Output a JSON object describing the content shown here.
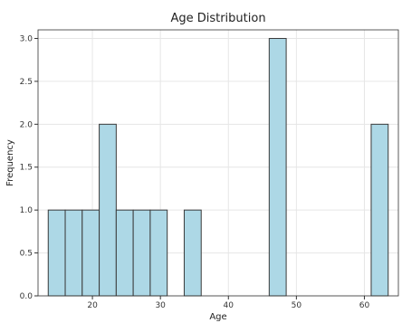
{
  "chart_data": {
    "type": "bar",
    "title": "Age Distribution",
    "xlabel": "Age",
    "ylabel": "Frequency",
    "xlim": [
      12,
      65
    ],
    "ylim": [
      0,
      3.1
    ],
    "xticks": [
      20,
      30,
      40,
      50,
      60
    ],
    "yticks": [
      0.0,
      0.5,
      1.0,
      1.5,
      2.0,
      2.5,
      3.0
    ],
    "grid": true,
    "bars": [
      {
        "x0": 13.5,
        "x1": 16.0,
        "value": 1
      },
      {
        "x0": 16.0,
        "x1": 18.5,
        "value": 1
      },
      {
        "x0": 18.5,
        "x1": 21.0,
        "value": 1
      },
      {
        "x0": 21.0,
        "x1": 23.5,
        "value": 2
      },
      {
        "x0": 23.5,
        "x1": 26.0,
        "value": 1
      },
      {
        "x0": 26.0,
        "x1": 28.5,
        "value": 1
      },
      {
        "x0": 28.5,
        "x1": 31.0,
        "value": 1
      },
      {
        "x0": 33.5,
        "x1": 36.0,
        "value": 1
      },
      {
        "x0": 46.0,
        "x1": 48.5,
        "value": 3
      },
      {
        "x0": 61.0,
        "x1": 63.5,
        "value": 2
      }
    ],
    "colors": {
      "bar_fill": "#add8e6",
      "bar_edge": "#3a3a3a",
      "grid": "#e6e6e6",
      "axes": "#333333"
    }
  }
}
